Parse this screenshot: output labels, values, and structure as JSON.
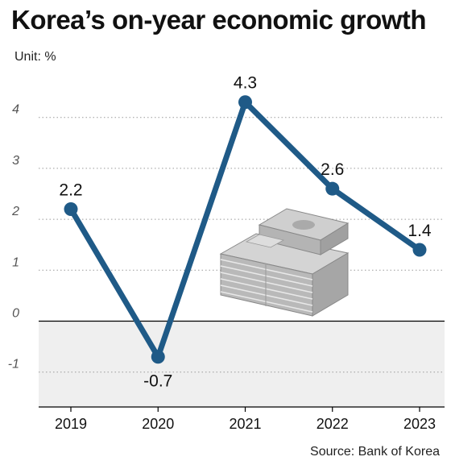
{
  "title": "Korea’s on-year economic growth",
  "unit": "Unit: %",
  "source": "Source: Bank of Korea",
  "colors": {
    "line": "#1f5a87",
    "negative_band": "#efefef",
    "grid": "#9a9a9a"
  },
  "chart_data": {
    "type": "line",
    "title": "Korea’s on-year economic growth",
    "xlabel": "",
    "ylabel": "",
    "categories": [
      "2019",
      "2020",
      "2021",
      "2022",
      "2023"
    ],
    "values": [
      2.2,
      -0.7,
      4.3,
      2.6,
      1.4
    ],
    "data_labels": [
      "2.2",
      "-0.7",
      "4.3",
      "2.6",
      "1.4"
    ],
    "yticks": [
      4,
      3,
      2,
      1,
      0,
      -1
    ],
    "ytick_labels": [
      "4",
      "3",
      "2",
      "1",
      "0",
      "-1"
    ],
    "ylim": [
      -1.7,
      4.8
    ],
    "grid": true,
    "legend": "none"
  }
}
